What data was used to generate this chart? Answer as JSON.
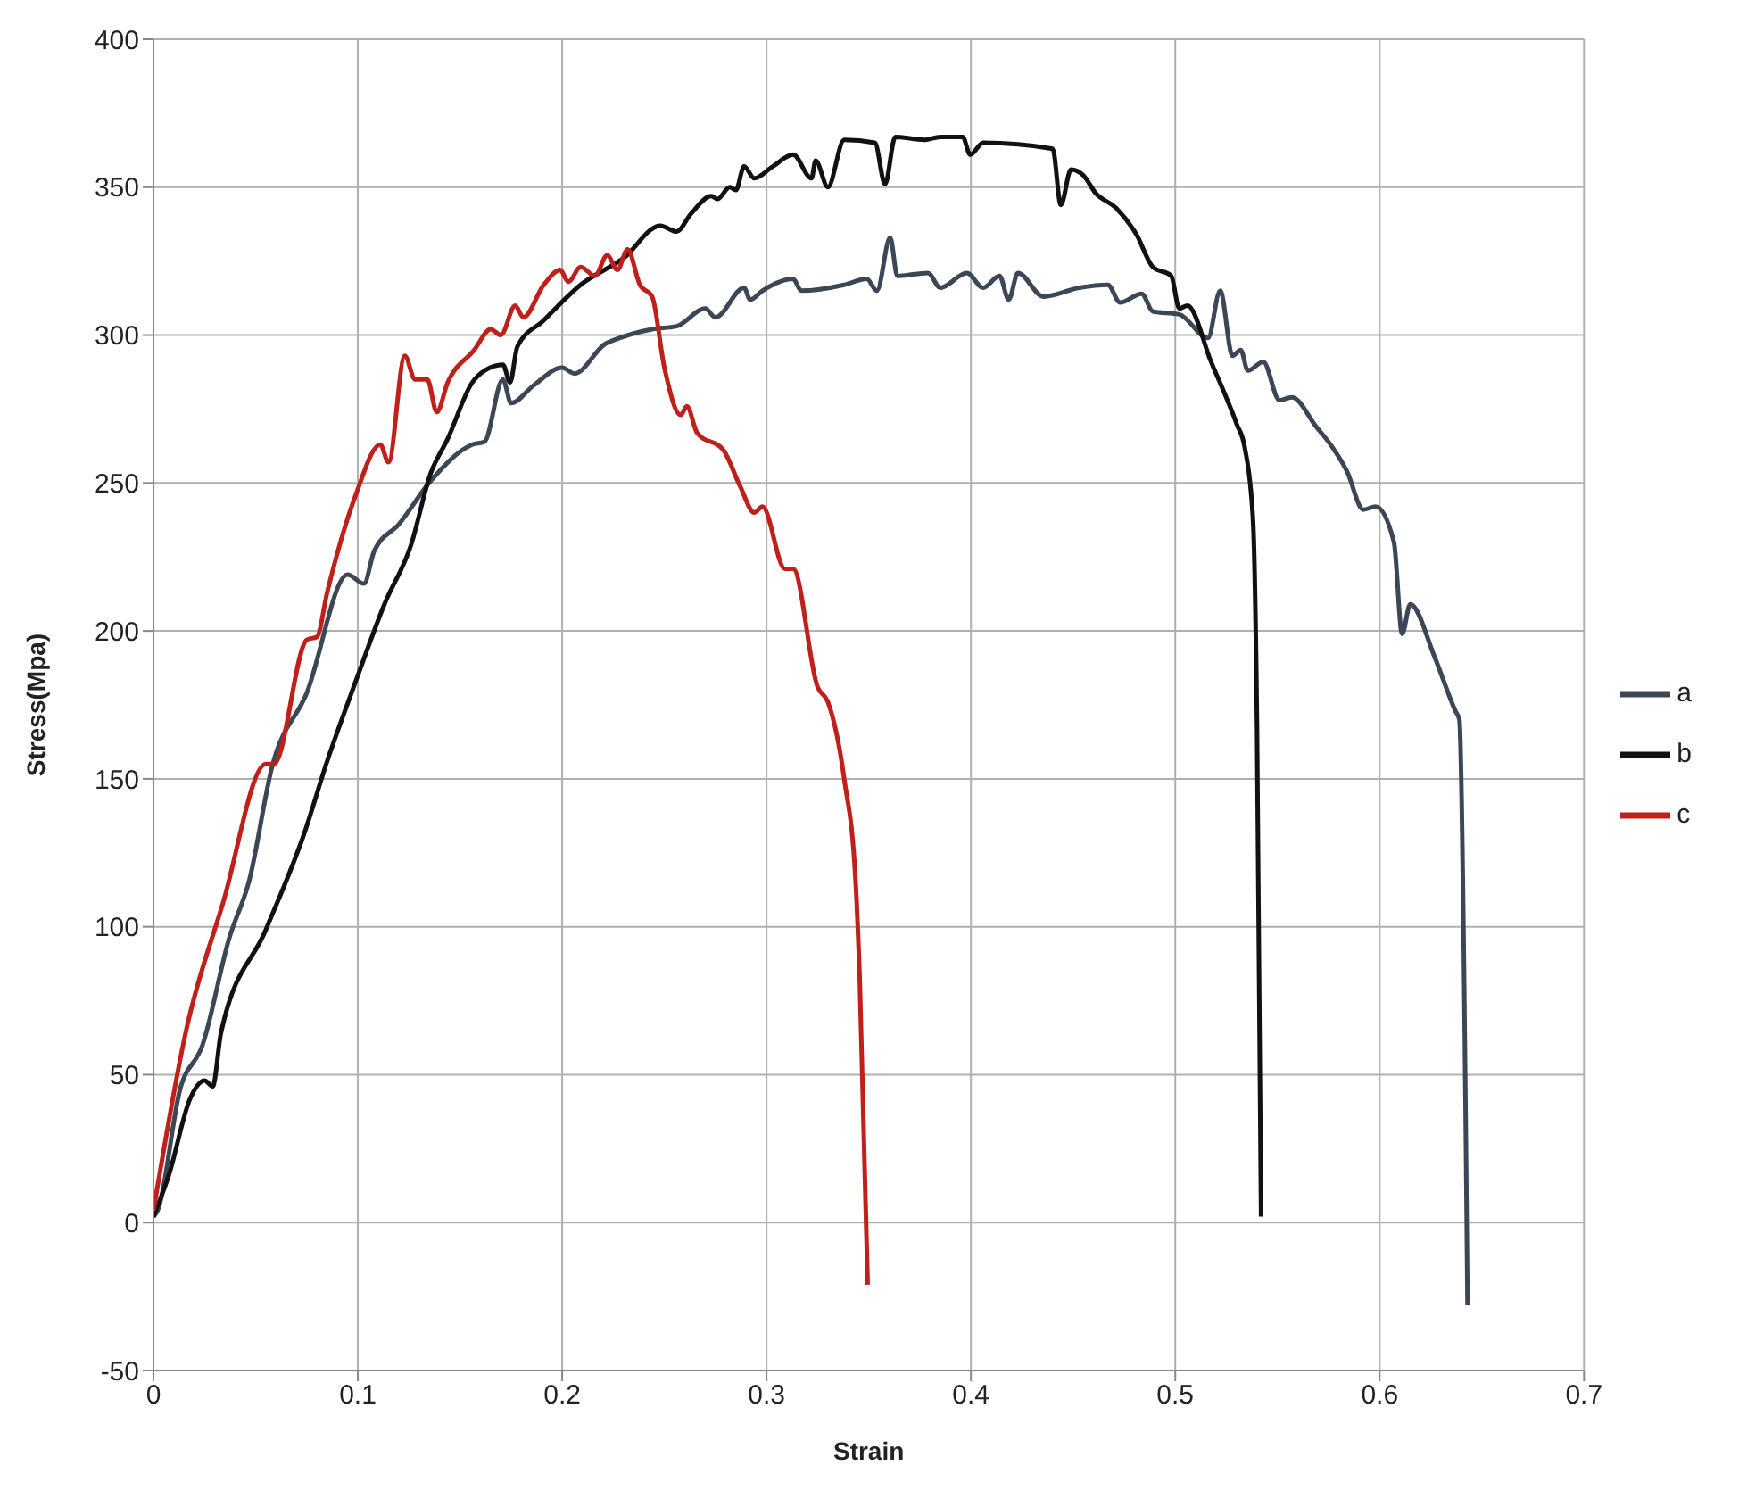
{
  "chart_data": {
    "type": "line",
    "xlabel": "Strain",
    "ylabel": "Stress(Mpa)",
    "xlim": [
      0,
      0.7
    ],
    "xticks": [
      0,
      0.1,
      0.2,
      0.3,
      0.4,
      0.5,
      0.6,
      0.7
    ],
    "ylim": [
      -50,
      400
    ],
    "yticks": [
      -50,
      0,
      50,
      100,
      150,
      200,
      250,
      300,
      350,
      400
    ],
    "grid": true,
    "legend": "right",
    "marker": "none",
    "line_style": "solid",
    "series": [
      {
        "name": "a",
        "color": "#3b4656",
        "x": [
          0,
          0.002,
          0.013,
          0.024,
          0.037,
          0.047,
          0.058,
          0.075,
          0.095,
          0.103,
          0.108,
          0.12,
          0.136,
          0.156,
          0.162,
          0.171,
          0.175,
          0.186,
          0.2,
          0.206,
          0.221,
          0.228,
          0.244,
          0.256,
          0.27,
          0.275,
          0.289,
          0.292,
          0.298,
          0.313,
          0.317,
          0.338,
          0.349,
          0.354,
          0.3605,
          0.364,
          0.379,
          0.385,
          0.398,
          0.406,
          0.414,
          0.4185,
          0.423,
          0.4355,
          0.453,
          0.467,
          0.473,
          0.4835,
          0.489,
          0.502,
          0.516,
          0.522,
          0.528,
          0.532,
          0.5355,
          0.543,
          0.551,
          0.557,
          0.569,
          0.577,
          0.584,
          0.592,
          0.598,
          0.607,
          0.611,
          0.615,
          0.627,
          0.637,
          0.639,
          0.643
        ],
        "values": [
          2,
          4,
          45,
          60,
          96,
          116,
          154,
          179,
          219,
          216,
          227,
          236,
          251,
          263,
          264,
          285,
          277,
          283,
          289,
          287,
          297,
          299,
          302,
          303,
          309,
          306,
          316,
          312,
          315,
          319,
          315,
          317,
          319,
          315,
          333,
          320,
          321,
          316,
          321,
          316,
          320,
          312,
          321,
          313,
          316,
          317,
          311,
          314,
          308,
          307,
          299,
          315,
          293,
          295,
          288,
          291,
          278,
          279,
          269,
          262,
          254,
          241,
          242,
          230,
          199,
          209,
          191,
          173,
          170,
          -28
        ]
      },
      {
        "name": "b",
        "color": "#111111",
        "x": [
          0,
          0.0075,
          0.018,
          0.025,
          0.029,
          0.033,
          0.055,
          0.074,
          0.085,
          0.099,
          0.113,
          0.126,
          0.1355,
          0.144,
          0.156,
          0.162,
          0.171,
          0.1745,
          0.178,
          0.191,
          0.209,
          0.23,
          0.248,
          0.256,
          0.263,
          0.273,
          0.276,
          0.282,
          0.285,
          0.289,
          0.294,
          0.303,
          0.313,
          0.322,
          0.324,
          0.33,
          0.338,
          0.353,
          0.358,
          0.363,
          0.377,
          0.385,
          0.396,
          0.3996,
          0.406,
          0.44,
          0.444,
          0.449,
          0.455,
          0.461,
          0.471,
          0.481,
          0.489,
          0.498,
          0.502,
          0.506,
          0.5175,
          0.53,
          0.534,
          0.538,
          0.54,
          0.542
        ],
        "values": [
          2,
          16,
          42,
          48,
          46,
          64,
          99,
          132,
          156,
          183,
          209,
          229,
          253,
          265,
          284,
          288,
          290,
          284,
          296,
          305,
          317,
          326,
          337,
          335,
          341,
          347,
          346,
          350,
          349,
          357,
          353,
          357,
          361,
          353,
          359,
          350,
          366,
          365,
          351,
          367,
          366,
          367,
          367,
          361,
          365,
          363,
          344,
          356,
          354,
          348,
          343,
          334,
          323,
          320,
          309,
          310,
          291,
          270,
          262,
          238,
          167,
          2
        ]
      },
      {
        "name": "c",
        "color": "#c0201a",
        "x": [
          0,
          0.016,
          0.034,
          0.055,
          0.059,
          0.075,
          0.08,
          0.085,
          0.099,
          0.111,
          0.115,
          0.123,
          0.128,
          0.134,
          0.1386,
          0.144,
          0.157,
          0.165,
          0.17,
          0.177,
          0.181,
          0.191,
          0.199,
          0.203,
          0.209,
          0.216,
          0.222,
          0.227,
          0.232,
          0.238,
          0.244,
          0.25,
          0.258,
          0.261,
          0.266,
          0.279,
          0.287,
          0.294,
          0.298,
          0.309,
          0.313,
          0.325,
          0.33,
          0.338,
          0.3436,
          0.3456,
          0.3495
        ],
        "values": [
          4,
          65,
          108,
          155,
          155,
          197,
          198,
          213,
          246,
          263,
          257,
          293,
          285,
          285,
          274,
          284,
          295,
          302,
          300,
          310,
          306,
          317,
          322,
          318,
          323,
          320,
          327,
          322,
          329,
          317,
          313,
          289,
          273,
          276,
          267,
          261,
          249,
          240,
          242,
          221,
          221,
          181,
          176,
          150,
          115,
          82,
          -21
        ]
      }
    ]
  }
}
